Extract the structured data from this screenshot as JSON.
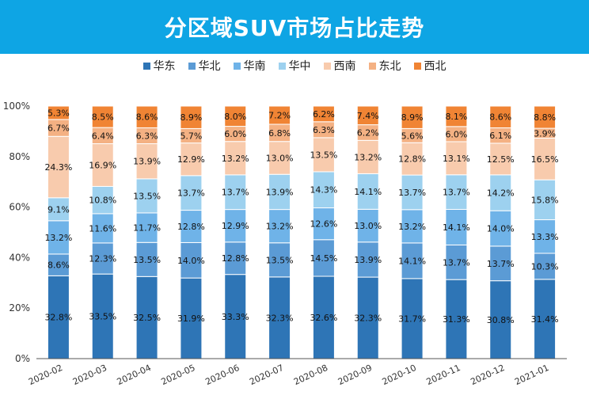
{
  "title": "分区域SUV市场占比走势",
  "colors": {
    "title_bg": "#0ea5e4",
    "series": [
      "#2e75b6",
      "#5b9bd5",
      "#6fb3e8",
      "#9dd1ef",
      "#f8cbad",
      "#f4b183",
      "#f08434"
    ]
  },
  "chart_data": {
    "type": "bar",
    "stacked": true,
    "percent_stacked": true,
    "title": "分区域SUV市场占比走势",
    "categories": [
      "2020-02",
      "2020-03",
      "2020-04",
      "2020-05",
      "2020-06",
      "2020-07",
      "2020-08",
      "2020-09",
      "2020-10",
      "2020-11",
      "2020-12",
      "2021-01"
    ],
    "series": [
      {
        "name": "华东",
        "values": [
          32.8,
          33.5,
          32.5,
          31.9,
          33.3,
          32.3,
          32.6,
          32.3,
          31.7,
          31.3,
          30.8,
          31.4
        ]
      },
      {
        "name": "华北",
        "values": [
          8.6,
          12.3,
          13.5,
          14.0,
          12.8,
          13.5,
          14.5,
          13.9,
          14.1,
          13.7,
          13.7,
          10.3
        ]
      },
      {
        "name": "华南",
        "values": [
          13.2,
          11.6,
          11.7,
          12.8,
          12.9,
          13.2,
          12.6,
          13.0,
          13.2,
          14.1,
          14.0,
          13.3
        ]
      },
      {
        "name": "华中",
        "values": [
          9.1,
          10.8,
          13.5,
          13.7,
          13.7,
          13.9,
          14.3,
          14.1,
          13.7,
          13.7,
          14.2,
          15.8
        ]
      },
      {
        "name": "西南",
        "values": [
          24.3,
          16.9,
          13.9,
          12.9,
          13.2,
          13.0,
          13.5,
          13.2,
          12.8,
          13.1,
          12.5,
          16.5
        ]
      },
      {
        "name": "东北",
        "values": [
          6.7,
          6.4,
          6.3,
          5.7,
          6.0,
          6.8,
          6.3,
          6.2,
          5.6,
          6.0,
          6.1,
          3.9
        ]
      },
      {
        "name": "西北",
        "values": [
          5.3,
          8.5,
          8.6,
          8.9,
          8.0,
          7.2,
          6.2,
          7.4,
          8.9,
          8.1,
          8.6,
          8.8
        ]
      }
    ],
    "y_ticks": [
      "0%",
      "20%",
      "40%",
      "60%",
      "80%",
      "100%"
    ],
    "ylim": [
      0,
      100
    ],
    "legend_position": "top",
    "grid": false,
    "data_labels": true
  }
}
